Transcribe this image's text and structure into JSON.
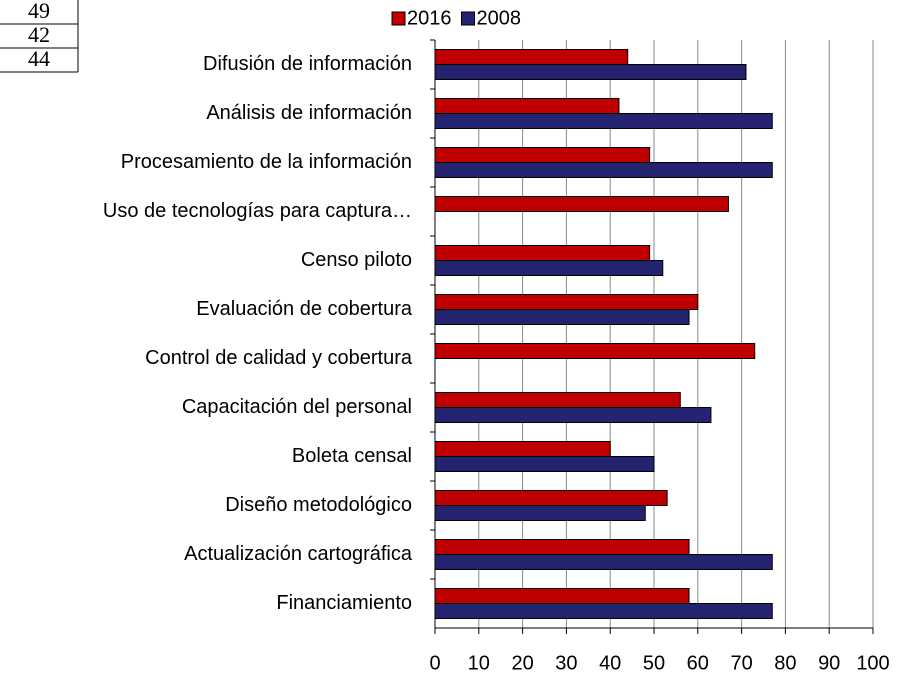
{
  "table": {
    "rows": [
      49,
      42,
      44
    ]
  },
  "chart_data": {
    "type": "hbar",
    "categories": [
      "Difusión de información",
      "Análisis de información",
      "Procesamiento de la información",
      "Uso de tecnologías para captura…",
      "Censo piloto",
      "Evaluación de cobertura",
      "Control de calidad y cobertura",
      "Capacitación del personal",
      "Boleta censal",
      "Diseño metodológico",
      "Actualización cartográfica",
      "Financiamiento"
    ],
    "series": [
      {
        "name": "2016",
        "color": "#c00000",
        "values": [
          44,
          42,
          49,
          67,
          49,
          60,
          73,
          56,
          40,
          53,
          58,
          58
        ]
      },
      {
        "name": "2008",
        "color": "#232370",
        "values": [
          71,
          77,
          77,
          null,
          52,
          58,
          null,
          63,
          50,
          48,
          77,
          77
        ]
      }
    ],
    "xlim": [
      0,
      100
    ],
    "xticks": [
      0,
      10,
      20,
      30,
      40,
      50,
      60,
      70,
      80,
      90,
      100
    ],
    "grid": true,
    "legend": "top"
  }
}
